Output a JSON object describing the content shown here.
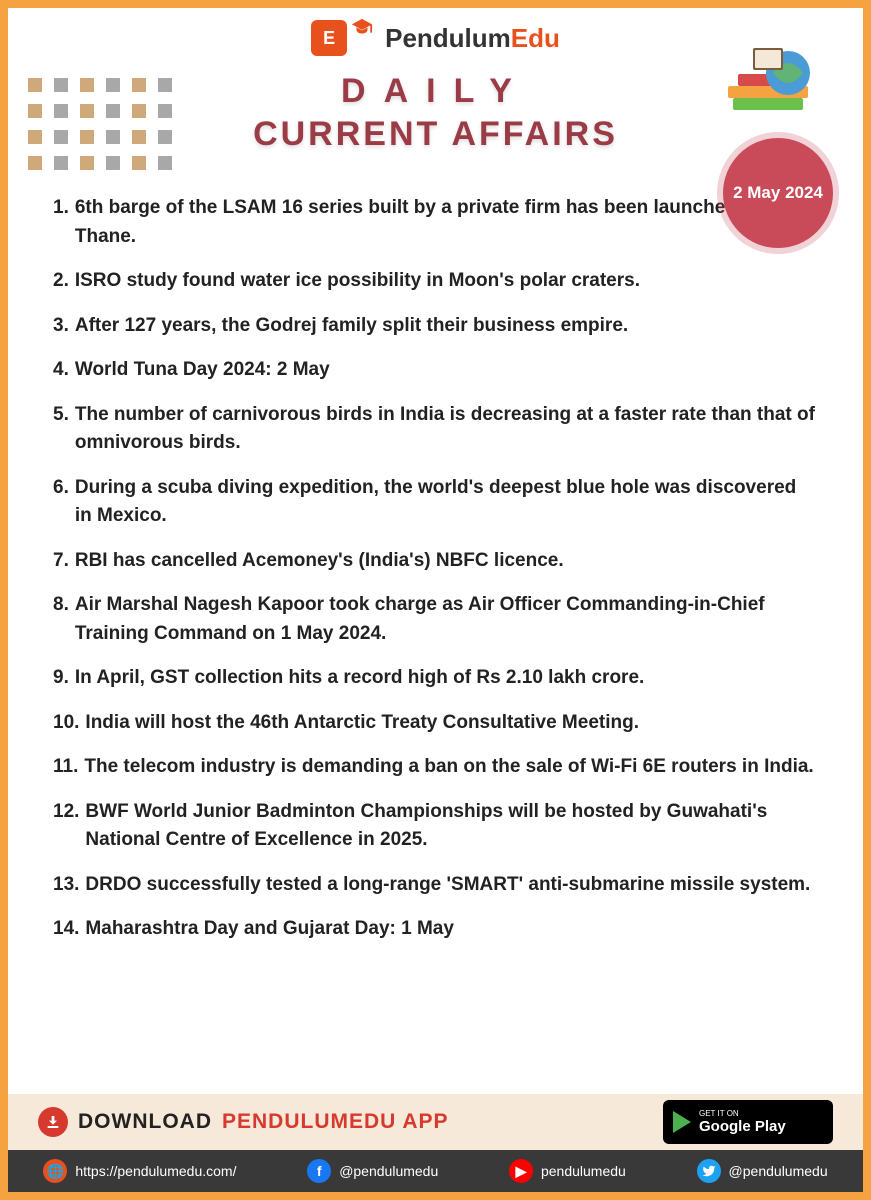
{
  "brand": {
    "name_part1": "Pendulum",
    "name_part2": "Edu",
    "logo_letter": "E"
  },
  "title": {
    "line1": "DAILY",
    "line2": "CURRENT AFFAIRS"
  },
  "date_badge": "2 May 2024",
  "colors": {
    "border": "#f4a340",
    "accent": "#9a3b45",
    "badge": "#c94b5a",
    "logo": "#e8501e",
    "download_bg": "#f6e9d9",
    "social_bg": "#393939"
  },
  "items": [
    "6th barge of the LSAM 16 series built by a private firm has been launched in Thane.",
    "ISRO study found water ice possibility in Moon's polar craters.",
    "After 127 years, the Godrej family split their business empire.",
    "World Tuna Day 2024: 2 May",
    "The number of carnivorous birds in India is decreasing at a faster rate than that of omnivorous birds.",
    "During a scuba diving expedition, the world's deepest blue hole was discovered in Mexico.",
    "RBI has cancelled Acemoney's (India's) NBFC licence.",
    "Air Marshal Nagesh Kapoor took charge as Air Officer Commanding-in-Chief Training Command on 1 May 2024.",
    "In April, GST collection hits a record high of Rs 2.10 lakh crore.",
    "India will host the 46th Antarctic Treaty Consultative Meeting.",
    "The telecom industry is demanding a ban on the sale of Wi-Fi 6E routers in India.",
    "BWF World Junior Badminton Championships will be hosted by Guwahati's National Centre of Excellence in 2025.",
    "DRDO successfully tested a long-range 'SMART' anti-submarine missile system.",
    "Maharashtra Day and Gujarat Day: 1 May"
  ],
  "download": {
    "label_prefix": "DOWNLOAD",
    "label_app": "PENDULUMEDU APP",
    "gplay_small": "GET IT ON",
    "gplay_big": "Google Play"
  },
  "social": {
    "web": "https://pendulumedu.com/",
    "fb": "@pendulumedu",
    "yt": "pendulumedu",
    "tw": "@pendulumedu"
  }
}
